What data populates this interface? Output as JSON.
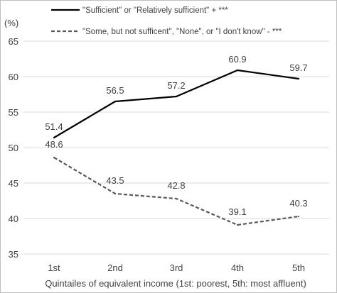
{
  "chart_data": {
    "type": "line",
    "categories": [
      "1st",
      "2nd",
      "3rd",
      "4th",
      "5th"
    ],
    "series": [
      {
        "name": "\"Sufficient\" or \"Relatively sufficient\"  + ***",
        "values": [
          51.4,
          56.5,
          57.2,
          60.9,
          59.7
        ],
        "labels": [
          "51.4",
          "56.5",
          "57.2",
          "60.9",
          "59.7"
        ],
        "color": "#000000",
        "style": "solid"
      },
      {
        "name": "\"Some, but not sufficent\", \"None\", or \"I don't know\"  - ***",
        "values": [
          48.6,
          43.5,
          42.8,
          39.1,
          40.3
        ],
        "labels": [
          "48.6",
          "43.5",
          "42.8",
          "39.1",
          "40.3"
        ],
        "color": "#595959",
        "style": "dashed"
      }
    ],
    "ylabel": "(%)",
    "xlabel": "Quintailes of equivalent income (1st: poorest, 5th: most affluent)",
    "ylim": [
      35,
      65
    ],
    "yticks": [
      "35",
      "40",
      "45",
      "50",
      "55",
      "60",
      "65"
    ],
    "grid": true,
    "legend": "top"
  }
}
